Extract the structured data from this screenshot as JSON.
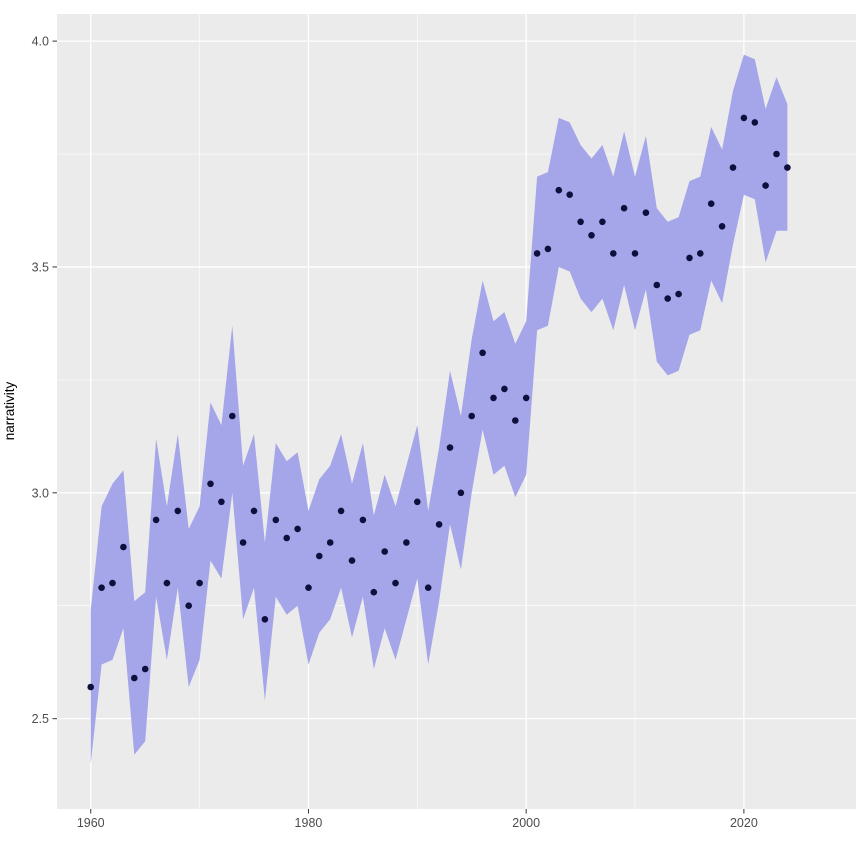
{
  "figure": {
    "background": "#ffffff"
  },
  "chart_data": {
    "type": "scatter",
    "title": "",
    "xlabel": "",
    "ylabel": "narrativity",
    "legend": "none",
    "grid": true,
    "x": [
      1960,
      1961,
      1962,
      1963,
      1964,
      1965,
      1966,
      1967,
      1968,
      1969,
      1970,
      1971,
      1972,
      1973,
      1974,
      1975,
      1976,
      1977,
      1978,
      1979,
      1980,
      1981,
      1982,
      1983,
      1984,
      1985,
      1986,
      1987,
      1988,
      1989,
      1990,
      1991,
      1992,
      1993,
      1994,
      1995,
      1996,
      1997,
      1998,
      1999,
      2000,
      2001,
      2002,
      2003,
      2004,
      2005,
      2006,
      2007,
      2008,
      2009,
      2010,
      2011,
      2012,
      2013,
      2014,
      2015,
      2016,
      2017,
      2018,
      2019,
      2020,
      2021,
      2022,
      2023,
      2024
    ],
    "series": [
      {
        "name": "narrativity",
        "values": [
          2.57,
          2.79,
          2.8,
          2.88,
          2.59,
          2.61,
          2.94,
          2.8,
          2.96,
          2.75,
          2.8,
          3.02,
          2.98,
          3.17,
          2.89,
          2.96,
          2.72,
          2.94,
          2.9,
          2.92,
          2.79,
          2.86,
          2.89,
          2.96,
          2.85,
          2.94,
          2.78,
          2.87,
          2.8,
          2.89,
          2.98,
          2.79,
          2.93,
          3.1,
          3.0,
          3.17,
          3.31,
          3.21,
          3.23,
          3.16,
          3.21,
          3.53,
          3.54,
          3.67,
          3.66,
          3.6,
          3.57,
          3.6,
          3.53,
          3.63,
          3.53,
          3.62,
          3.46,
          3.43,
          3.44,
          3.52,
          3.53,
          3.64,
          3.59,
          3.72,
          3.83,
          3.82,
          3.68,
          3.75,
          3.72
        ]
      }
    ],
    "ribbon": {
      "lower": [
        2.4,
        2.62,
        2.63,
        2.7,
        2.42,
        2.45,
        2.77,
        2.63,
        2.79,
        2.57,
        2.63,
        2.85,
        2.81,
        3.0,
        2.72,
        2.79,
        2.54,
        2.77,
        2.73,
        2.75,
        2.62,
        2.69,
        2.72,
        2.79,
        2.68,
        2.77,
        2.61,
        2.7,
        2.63,
        2.72,
        2.81,
        2.62,
        2.76,
        2.93,
        2.83,
        3.0,
        3.14,
        3.04,
        3.06,
        2.99,
        3.04,
        3.36,
        3.37,
        3.5,
        3.49,
        3.43,
        3.4,
        3.43,
        3.36,
        3.46,
        3.36,
        3.45,
        3.29,
        3.26,
        3.27,
        3.35,
        3.36,
        3.47,
        3.42,
        3.55,
        3.66,
        3.65,
        3.51,
        3.58,
        3.58
      ],
      "upper": [
        2.74,
        2.97,
        3.02,
        3.05,
        2.76,
        2.78,
        3.12,
        2.97,
        3.13,
        2.92,
        2.97,
        3.2,
        3.15,
        3.37,
        3.06,
        3.13,
        2.89,
        3.11,
        3.07,
        3.09,
        2.96,
        3.03,
        3.06,
        3.13,
        3.02,
        3.11,
        2.95,
        3.04,
        2.97,
        3.06,
        3.15,
        2.96,
        3.1,
        3.27,
        3.17,
        3.34,
        3.47,
        3.38,
        3.4,
        3.33,
        3.38,
        3.7,
        3.71,
        3.83,
        3.82,
        3.77,
        3.74,
        3.77,
        3.7,
        3.8,
        3.7,
        3.79,
        3.63,
        3.6,
        3.61,
        3.69,
        3.7,
        3.81,
        3.76,
        3.89,
        3.97,
        3.96,
        3.85,
        3.92,
        3.86
      ]
    },
    "x_ticks": [
      1960,
      1980,
      2000,
      2020
    ],
    "x_tick_labels": [
      "1960",
      "1980",
      "2000",
      "2020"
    ],
    "y_ticks": [
      2.5,
      3.0,
      3.5,
      4.0
    ],
    "y_tick_labels": [
      "2.5",
      "3.0",
      "3.5",
      "4.0"
    ],
    "x_minor": [
      1970,
      1990,
      2010
    ],
    "y_minor": [
      2.75,
      3.25,
      3.75
    ],
    "xlim": [
      1956.9,
      2030.3
    ],
    "ylim": [
      2.3,
      4.06
    ],
    "colors": {
      "point": "#0f0f3d",
      "ribbon": "#a5a5e9",
      "panel": "#ebebeb",
      "grid_major": "#ffffff",
      "grid_minor": "#ffffff",
      "tick_label": "#4d4d4d",
      "axis_title": "#000000",
      "tick_mark": "#333333"
    }
  }
}
